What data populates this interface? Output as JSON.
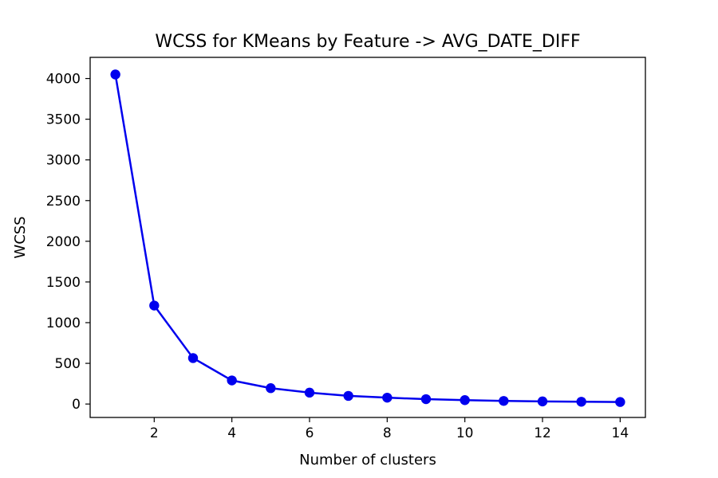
{
  "chart_data": {
    "type": "line",
    "title": "WCSS for KMeans by Feature -> AVG_DATE_DIFF",
    "xlabel": "Number of clusters",
    "ylabel": "WCSS",
    "x": [
      1,
      2,
      3,
      4,
      5,
      6,
      7,
      8,
      9,
      10,
      11,
      12,
      13,
      14
    ],
    "series": [
      {
        "values": [
          4050,
          1210,
          565,
          290,
          195,
          140,
          100,
          78,
          60,
          48,
          38,
          32,
          28,
          25
        ]
      }
    ],
    "xlim": [
      0.35,
      14.65
    ],
    "ylim": [
      -165,
      4260
    ],
    "xticks": [
      2,
      4,
      6,
      8,
      10,
      12,
      14
    ],
    "yticks": [
      0,
      500,
      1000,
      1500,
      2000,
      2500,
      3000,
      3500,
      4000
    ],
    "grid": false,
    "marker": "circle",
    "colors": {
      "line": "#0000ee",
      "marker": "#0000ee",
      "axes": "#000000",
      "background": "#ffffff"
    }
  }
}
